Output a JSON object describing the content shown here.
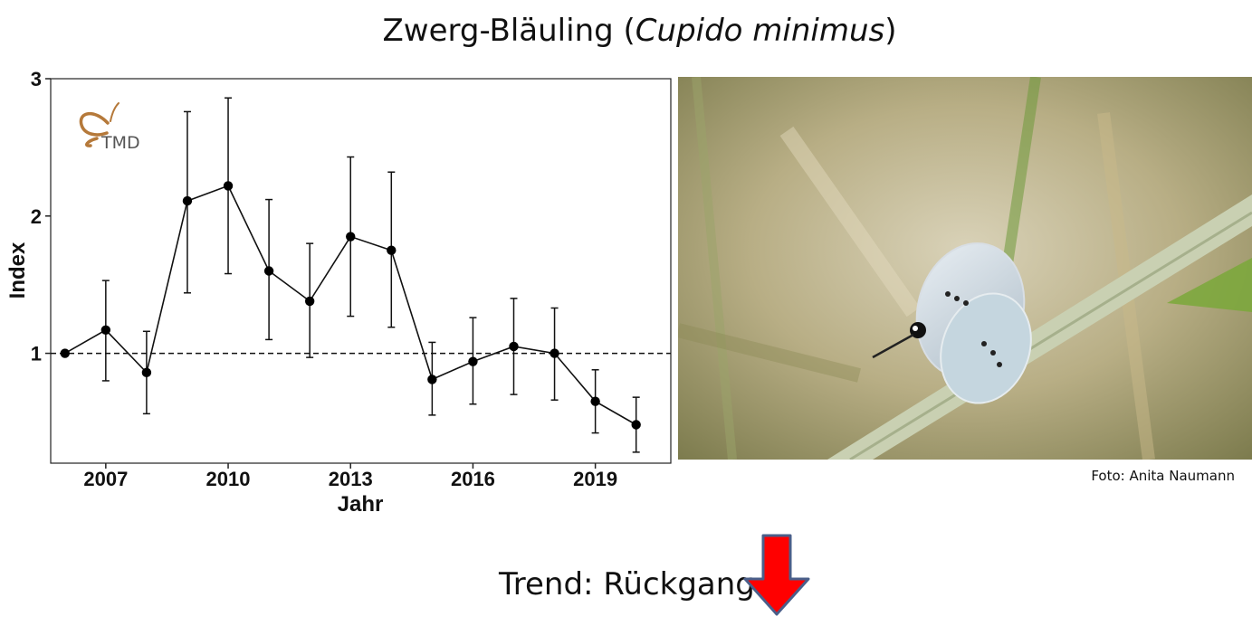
{
  "title": {
    "common_name": "Zwerg-Bläuling",
    "scientific_name": "Cupido minimus"
  },
  "logo_text": "TMD",
  "photo": {
    "credit": "Foto: Anita Naumann",
    "subject": "butterfly on grass blade"
  },
  "trend": {
    "label": "Trend: Rückgang",
    "arrow_color": "#ff0000",
    "arrow_outline": "#4a5f8a",
    "icon": "arrow-down-icon"
  },
  "chart_data": {
    "type": "line",
    "xlabel": "Jahr",
    "ylabel": "Index",
    "xlim": [
      2005.65,
      2020.85
    ],
    "ylim": [
      0.2,
      3.0
    ],
    "xticks": [
      2007,
      2010,
      2013,
      2016,
      2019
    ],
    "yticks": [
      1,
      2,
      3
    ],
    "reference_line": 1,
    "series": [
      {
        "x": [
          2006,
          2007,
          2008,
          2009,
          2010,
          2011,
          2012,
          2013,
          2014,
          2015,
          2016,
          2017,
          2018,
          2019,
          2020
        ],
        "values": [
          1.0,
          1.17,
          0.86,
          2.11,
          2.22,
          1.6,
          1.38,
          1.85,
          1.75,
          0.81,
          0.94,
          1.05,
          1.0,
          0.65,
          0.48
        ],
        "lower": [
          1.0,
          0.8,
          0.56,
          1.44,
          1.58,
          1.1,
          0.97,
          1.27,
          1.19,
          0.55,
          0.63,
          0.7,
          0.66,
          0.42,
          0.28
        ],
        "upper": [
          1.0,
          1.53,
          1.16,
          2.76,
          2.86,
          2.12,
          1.8,
          2.43,
          2.32,
          1.08,
          1.26,
          1.4,
          1.33,
          0.88,
          0.68
        ]
      }
    ],
    "grid": false
  }
}
